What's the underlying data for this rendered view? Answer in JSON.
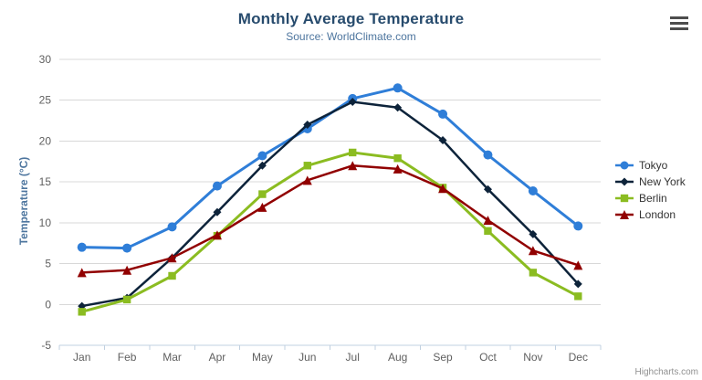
{
  "chart": {
    "title": "Monthly Average Temperature",
    "subtitle": "Source: WorldClimate.com",
    "credits": "Highcharts.com",
    "context_menu_icon": "hamburger-icon"
  },
  "chart_data": {
    "type": "line",
    "title": "Monthly Average Temperature",
    "subtitle": "Source: WorldClimate.com",
    "categories": [
      "Jan",
      "Feb",
      "Mar",
      "Apr",
      "May",
      "Jun",
      "Jul",
      "Aug",
      "Sep",
      "Oct",
      "Nov",
      "Dec"
    ],
    "xlabel": "",
    "ylabel": "Temperature (°C)",
    "ylim": [
      -5,
      30
    ],
    "ytick_interval": 5,
    "grid": true,
    "legend_position": "right",
    "series": [
      {
        "name": "Tokyo",
        "color": "#2f7ed8",
        "marker": "circle",
        "values": [
          7.0,
          6.9,
          9.5,
          14.5,
          18.2,
          21.5,
          25.2,
          26.5,
          23.3,
          18.3,
          13.9,
          9.6
        ]
      },
      {
        "name": "New York",
        "color": "#0d233a",
        "marker": "diamond",
        "values": [
          -0.2,
          0.8,
          5.7,
          11.3,
          17.0,
          22.0,
          24.8,
          24.1,
          20.1,
          14.1,
          8.6,
          2.5
        ]
      },
      {
        "name": "Berlin",
        "color": "#8bbc21",
        "marker": "square",
        "values": [
          -0.9,
          0.6,
          3.5,
          8.4,
          13.5,
          17.0,
          18.6,
          17.9,
          14.3,
          9.0,
          3.9,
          1.0
        ]
      },
      {
        "name": "London",
        "color": "#910000",
        "marker": "triangle",
        "values": [
          3.9,
          4.2,
          5.7,
          8.5,
          11.9,
          15.2,
          17.0,
          16.6,
          14.2,
          10.3,
          6.6,
          4.8
        ]
      }
    ]
  },
  "colors": {
    "title": "#274b6d",
    "subtitle": "#4d759e",
    "axis_label": "#606060",
    "grid_line": "#d8d8d8",
    "axis_line": "#c0d0e0",
    "legend_text": "#333333",
    "credits": "#909090"
  }
}
